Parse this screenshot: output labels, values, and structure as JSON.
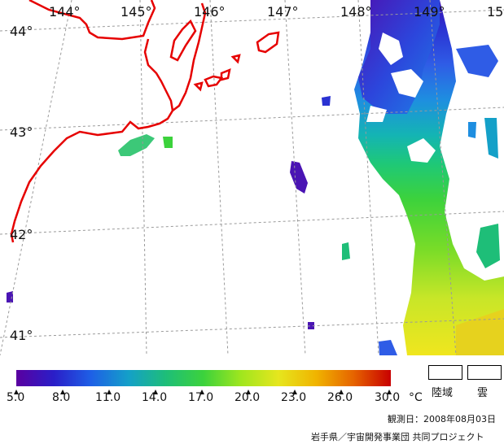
{
  "map": {
    "longitude_labels": [
      "144°",
      "145°",
      "146°",
      "147°",
      "148°",
      "149°",
      "15"
    ],
    "latitude_labels": [
      "44°",
      "43°",
      "42°",
      "41°"
    ],
    "colors": {
      "coastline": "#e60000",
      "grid": "#9a9a9a",
      "cloud": "#ffffff",
      "land": "#ffffff"
    }
  },
  "colorbar": {
    "tick_labels": [
      "5.0",
      "8.0",
      "11.0",
      "14.0",
      "17.0",
      "20.0",
      "23.0",
      "26.0",
      "30.0"
    ],
    "unit": "°C",
    "colors": [
      "#5a00a0",
      "#2a1ec8",
      "#1e60e6",
      "#14a0c8",
      "#1ebe78",
      "#3cd23c",
      "#a0e61e",
      "#e6e61e",
      "#f0b400",
      "#e66400",
      "#c80000"
    ],
    "legend_boxes": [
      {
        "label": "陸域"
      },
      {
        "label": "雲"
      }
    ]
  },
  "footer": {
    "observation_date": "観測日：2008年08月03日",
    "credit": "岩手県／宇宙開発事業団 共同プロジェクト"
  }
}
